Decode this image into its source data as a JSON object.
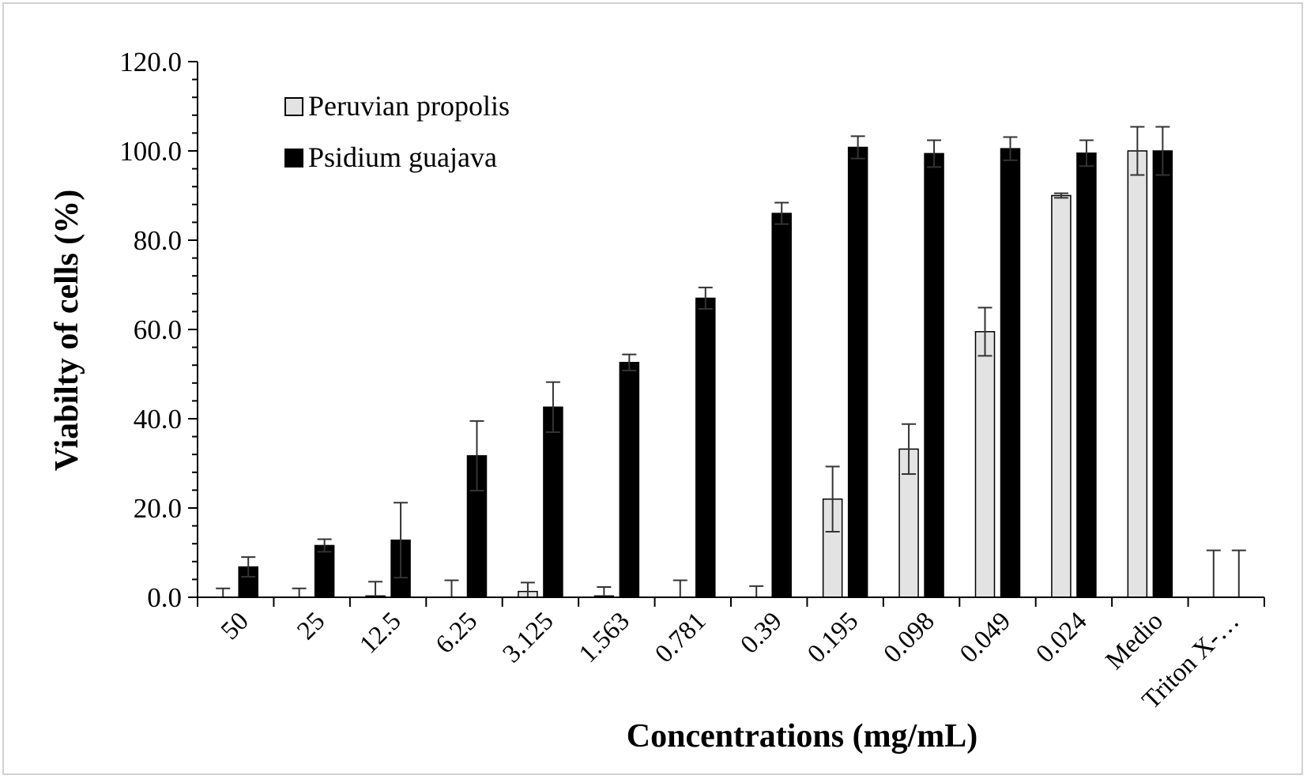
{
  "colors": {
    "series_light": "#e3e3e3",
    "series_dark": "#000000",
    "axis": "#000000",
    "error_bar": "#333333",
    "frame": "#d0d0d0"
  },
  "chart_data": {
    "type": "bar",
    "title": "",
    "xlabel": "Concentrations (mg/mL)",
    "ylabel": "Viabilty of cells (%)",
    "ylim": [
      0,
      120
    ],
    "yticks": [
      "0.0",
      "20.0",
      "40.0",
      "60.0",
      "80.0",
      "100.0",
      "120.0"
    ],
    "grid": false,
    "legend_position": "top-left",
    "categories": [
      "50",
      "25",
      "12.5",
      "6.25",
      "3.125",
      "1.563",
      "0.781",
      "0.39",
      "0.195",
      "0.098",
      "0.049",
      "0.024",
      "Medio",
      "Triton X-…"
    ],
    "series": [
      {
        "name": "Peruvian propolis",
        "color": "#e3e3e3",
        "values": [
          0.0,
          0.0,
          0.3,
          0.0,
          1.3,
          0.3,
          0.0,
          0.0,
          22.0,
          33.2,
          59.5,
          90.0,
          100.0,
          0.0
        ],
        "errors": [
          2.0,
          2.0,
          3.2,
          3.8,
          2.0,
          2.0,
          3.8,
          2.5,
          7.3,
          5.6,
          5.4,
          0.5,
          5.4,
          10.5
        ]
      },
      {
        "name": "Psidium guajava",
        "color": "#000000",
        "values": [
          6.8,
          11.6,
          12.8,
          31.7,
          42.6,
          52.6,
          67.0,
          86.0,
          100.8,
          99.4,
          100.5,
          99.5,
          100.0,
          0.0
        ],
        "errors": [
          2.2,
          1.4,
          8.4,
          7.8,
          5.6,
          1.8,
          2.4,
          2.4,
          2.5,
          3.0,
          2.6,
          2.9,
          5.4,
          10.5
        ]
      }
    ]
  }
}
